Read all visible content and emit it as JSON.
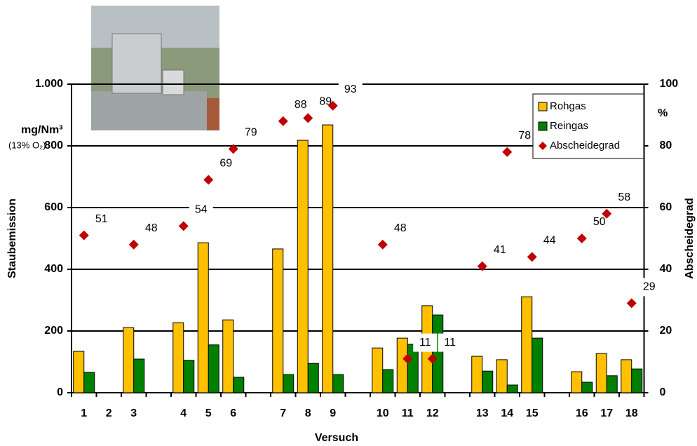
{
  "chart_data": {
    "type": "bar",
    "x_label": "Versuch",
    "y_label": "Staubemission",
    "y2_label": "Abscheidegrad",
    "y_unit": "mg/Nm³",
    "y_unit_note": "(13% O₂)",
    "y2_unit": "%",
    "categories": [
      "1",
      "2",
      "3",
      null,
      "4",
      "5",
      "6",
      null,
      "7",
      "8",
      "9",
      null,
      "10",
      "11",
      "12",
      null,
      "13",
      "14",
      "15",
      null,
      "16",
      "17",
      "18"
    ],
    "series": [
      {
        "name": "Rohgas",
        "type": "bar",
        "color": "#ffc000",
        "values": [
          134,
          null,
          211,
          null,
          227,
          486,
          236,
          null,
          466,
          818,
          868,
          null,
          145,
          177,
          282,
          null,
          118,
          107,
          311,
          null,
          68,
          127,
          107
        ]
      },
      {
        "name": "Reingas",
        "type": "bar",
        "color": "#008000",
        "values": [
          66,
          null,
          109,
          null,
          105,
          155,
          50,
          null,
          59,
          95,
          59,
          null,
          75,
          157,
          252,
          null,
          70,
          25,
          177,
          null,
          34,
          55,
          77
        ]
      },
      {
        "name": "Abscheidegrad",
        "type": "scatter",
        "axis": "y2",
        "color": "#c00000",
        "values": [
          51,
          null,
          48,
          null,
          54,
          69,
          79,
          null,
          88,
          89,
          93,
          null,
          48,
          11,
          11,
          null,
          41,
          78,
          44,
          null,
          50,
          58,
          29
        ]
      }
    ],
    "ylim": [
      0,
      1000
    ],
    "yticks": [
      0,
      200,
      400,
      600,
      800,
      {
        "value": 1000,
        "label": "1.000"
      }
    ],
    "y2lim": [
      0,
      100
    ],
    "y2ticks": [
      0,
      20,
      40,
      60,
      80,
      100
    ],
    "grid": true,
    "legend": "top-right"
  }
}
